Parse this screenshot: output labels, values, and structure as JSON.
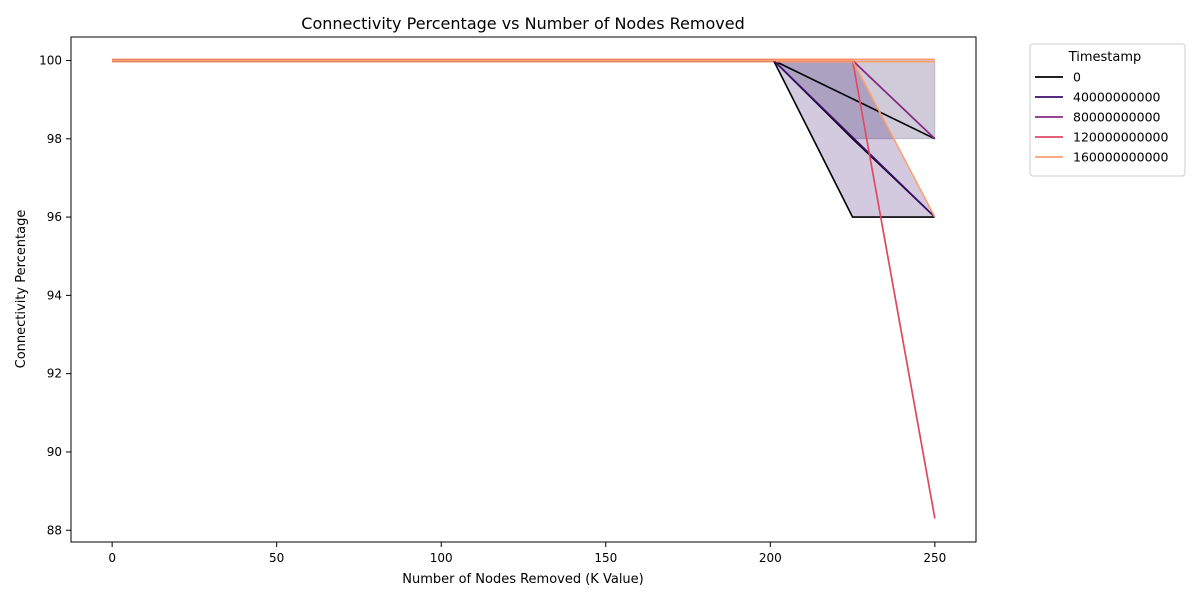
{
  "chart_data": {
    "type": "line",
    "title": "Connectivity Percentage vs Number of Nodes Removed",
    "xlabel": "Number of Nodes Removed (K Value)",
    "ylabel": "Connectivity Percentage",
    "xlim": [
      -12.5,
      262.5
    ],
    "ylim": [
      87.7,
      100.6
    ],
    "xticks": [
      0,
      50,
      100,
      150,
      200,
      250
    ],
    "yticks": [
      88,
      90,
      92,
      94,
      96,
      98,
      100
    ],
    "grid": false,
    "legend": {
      "title": "Timestamp",
      "placement": "outside-top-right"
    },
    "series": [
      {
        "name": "0",
        "color": "#000004",
        "x": [
          0,
          201,
          225,
          250
        ],
        "y": [
          100,
          100,
          96,
          96
        ]
      },
      {
        "name": "40000000000",
        "color": "#3b0f70",
        "x": [
          0,
          201,
          250
        ],
        "y": [
          100,
          100,
          96
        ]
      },
      {
        "name": "80000000000",
        "color": "#8c2981",
        "x": [
          0,
          225,
          250
        ],
        "y": [
          100,
          100,
          98
        ]
      },
      {
        "name": "120000000000",
        "color": "#de4968",
        "x": [
          0,
          225,
          250
        ],
        "y": [
          100,
          100,
          88.3
        ]
      },
      {
        "name": "160000000000",
        "color": "#fe9f6d",
        "x": [
          0,
          225,
          250
        ],
        "y": [
          100,
          100,
          96
        ]
      }
    ],
    "bands": [
      {
        "color": "#3b0f70",
        "opacity": 0.22,
        "x": [
          201,
          225,
          250
        ],
        "upper": [
          100,
          100,
          96
        ],
        "lower": [
          100,
          96,
          96
        ]
      },
      {
        "color": "#231151",
        "opacity": 0.22,
        "x": [
          201,
          225,
          250
        ],
        "upper": [
          100,
          100,
          98
        ],
        "lower": [
          100,
          100,
          98
        ]
      },
      {
        "color": "#231151",
        "opacity": 0.22,
        "x": [
          201,
          225,
          250
        ],
        "upper": [
          100,
          100,
          100
        ],
        "lower": [
          100,
          98,
          98
        ]
      }
    ],
    "extra_lines": [
      {
        "color": "#000004",
        "x": [
          201,
          250
        ],
        "y": [
          100,
          98
        ]
      },
      {
        "color": "#000004",
        "x": [
          201,
          225,
          250
        ],
        "y": [
          100,
          98,
          96
        ]
      },
      {
        "color": "#8c2981",
        "x": [
          225,
          250
        ],
        "y": [
          100,
          98
        ]
      },
      {
        "color": "#fe9f6d",
        "x": [
          225,
          250
        ],
        "y": [
          100,
          96
        ],
        "dotted": true
      },
      {
        "color": "#fe9f6d",
        "x": [
          0,
          250
        ],
        "y": [
          100.03,
          100.03
        ]
      },
      {
        "color": "#fe9f6d",
        "x": [
          0,
          250
        ],
        "y": [
          99.97,
          99.97
        ]
      },
      {
        "color": "#f2844b",
        "x": [
          225,
          250
        ],
        "y": [
          100,
          88.3
        ]
      }
    ]
  }
}
